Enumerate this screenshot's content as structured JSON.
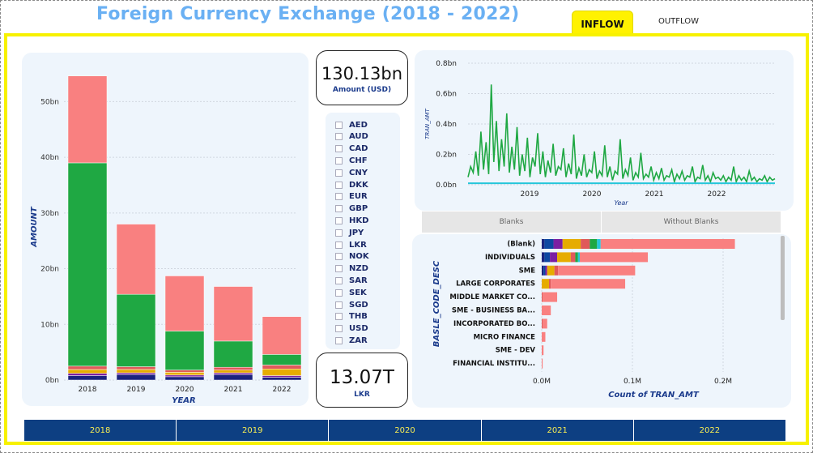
{
  "header": {
    "title": "Foreign Currency Exchange  (2018 - 2022)",
    "tabs": [
      {
        "label": "INFLOW",
        "active": true
      },
      {
        "label": "OUTFLOW",
        "active": false
      }
    ],
    "accent_color": "#fff200",
    "title_color": "#6ab0f3"
  },
  "kpis": {
    "amount_usd": {
      "value": "130.13bn",
      "label": "Amount (USD)"
    },
    "lkr": {
      "value": "13.07T",
      "label": "LKR"
    }
  },
  "currency_slicer": {
    "items": [
      "AED",
      "AUD",
      "CAD",
      "CHF",
      "CNY",
      "DKK",
      "EUR",
      "GBP",
      "HKD",
      "JPY",
      "LKR",
      "NOK",
      "NZD",
      "SAR",
      "SEK",
      "SGD",
      "THB",
      "USD",
      "ZAR"
    ]
  },
  "blanks_toggle": {
    "options": [
      "Blanks",
      "Without Blanks"
    ]
  },
  "year_buttons": [
    "2018",
    "2019",
    "2020",
    "2021",
    "2022"
  ],
  "chart_data": [
    {
      "type": "bar",
      "stacked": true,
      "categories": [
        "2018",
        "2019",
        "2020",
        "2021",
        "2022"
      ],
      "xlabel": "YEAR",
      "ylabel": "AMOUNT",
      "ylim": [
        0,
        55
      ],
      "yticks": [
        "0bn",
        "10bn",
        "20bn",
        "30bn",
        "40bn",
        "50bn"
      ],
      "series": [
        {
          "values": [
            0.8,
            1.0,
            0.6,
            1.0,
            0.5
          ],
          "color": "#1a237e"
        },
        {
          "values": [
            0.4,
            0.3,
            0.3,
            0.3,
            0.3
          ],
          "color": "#7b1fa2"
        },
        {
          "values": [
            0.7,
            0.6,
            0.5,
            0.5,
            1.2
          ],
          "color": "#e6ac00"
        },
        {
          "values": [
            0.6,
            0.5,
            0.4,
            0.5,
            0.7
          ],
          "color": "#e05a5a"
        },
        {
          "values": [
            36.5,
            13.0,
            7.0,
            4.7,
            1.9
          ],
          "color": "#1fa843"
        },
        {
          "values": [
            15.6,
            12.6,
            9.9,
            9.8,
            6.8
          ],
          "color": "#f98080"
        }
      ]
    },
    {
      "type": "line",
      "xlabel": "Year",
      "ylabel": "TRAN_AMT",
      "ylim": [
        0,
        0.8
      ],
      "yticks": [
        "0.0bn",
        "0.2bn",
        "0.4bn",
        "0.6bn",
        "0.8bn"
      ],
      "xticks": [
        "2019",
        "2020",
        "2021",
        "2022"
      ],
      "series": [
        {
          "color": "#1fa843",
          "values": [
            0.05,
            0.12,
            0.08,
            0.22,
            0.06,
            0.35,
            0.1,
            0.28,
            0.07,
            0.66,
            0.15,
            0.42,
            0.09,
            0.3,
            0.12,
            0.47,
            0.08,
            0.25,
            0.1,
            0.38,
            0.06,
            0.2,
            0.09,
            0.31,
            0.05,
            0.18,
            0.12,
            0.34,
            0.07,
            0.22,
            0.05,
            0.16,
            0.08,
            0.27,
            0.06,
            0.12,
            0.1,
            0.24,
            0.05,
            0.14,
            0.07,
            0.33,
            0.04,
            0.11,
            0.06,
            0.2,
            0.05,
            0.1,
            0.08,
            0.22,
            0.04,
            0.09,
            0.06,
            0.26,
            0.05,
            0.12,
            0.03,
            0.09,
            0.07,
            0.3,
            0.04,
            0.1,
            0.06,
            0.18,
            0.03,
            0.08,
            0.05,
            0.21,
            0.04,
            0.07,
            0.05,
            0.12,
            0.03,
            0.08,
            0.04,
            0.11,
            0.03,
            0.06,
            0.05,
            0.1,
            0.02,
            0.07,
            0.04,
            0.09,
            0.03,
            0.06,
            0.05,
            0.12,
            0.02,
            0.05,
            0.04,
            0.13,
            0.03,
            0.06,
            0.02,
            0.08,
            0.04,
            0.05,
            0.03,
            0.06,
            0.02,
            0.05,
            0.03,
            0.12,
            0.02,
            0.06,
            0.03,
            0.05,
            0.02,
            0.09,
            0.03,
            0.05,
            0.02,
            0.04,
            0.03,
            0.06,
            0.02,
            0.05,
            0.03,
            0.04
          ]
        },
        {
          "color": "#26c6da",
          "values": [
            0.01,
            0.01,
            0.01,
            0.01,
            0.01,
            0.01,
            0.01,
            0.01
          ]
        }
      ]
    },
    {
      "type": "bar",
      "orientation": "horizontal",
      "stacked": true,
      "xlabel": "Count of TRAN_AMT",
      "ylabel": "BASLE_CODE_DESC",
      "xlim": [
        0,
        0.25
      ],
      "xticks": [
        "0.0M",
        "0.1M",
        "0.2M"
      ],
      "categories": [
        "(Blank)",
        "INDIVIDUALS",
        "SME",
        "LARGE CORPORATES",
        "MIDDLE MARKET CO...",
        "SME - BUSINESS BA...",
        "INCORPORATED BO...",
        "MICRO FINANCE",
        "SME - DEV",
        "FINANCIAL INSTITU..."
      ],
      "series": [
        {
          "values": [
            0.003,
            0.003,
            0.002,
            0.0,
            0.0,
            0.0,
            0.0,
            0.0,
            0.0,
            0.0
          ],
          "color": "#1a237e"
        },
        {
          "values": [
            0.01,
            0.006,
            0.002,
            0.0,
            0.0,
            0.0,
            0.0,
            0.0,
            0.0,
            0.0
          ],
          "color": "#0d47a1"
        },
        {
          "values": [
            0.01,
            0.008,
            0.002,
            0.0,
            0.0,
            0.0,
            0.0,
            0.0,
            0.0,
            0.0
          ],
          "color": "#7b1fa2"
        },
        {
          "values": [
            0.02,
            0.015,
            0.008,
            0.008,
            0.0,
            0.0,
            0.0,
            0.0,
            0.0,
            0.0
          ],
          "color": "#e6ac00"
        },
        {
          "values": [
            0.01,
            0.005,
            0.004,
            0.002,
            0.001,
            0.0,
            0.001,
            0.0,
            0.0,
            0.0
          ],
          "color": "#e05a5a"
        },
        {
          "values": [
            0.008,
            0.003,
            0.0,
            0.0,
            0.0,
            0.0,
            0.0,
            0.0,
            0.0,
            0.0
          ],
          "color": "#1fa843"
        },
        {
          "values": [
            0.004,
            0.002,
            0.0,
            0.0,
            0.0,
            0.0,
            0.0,
            0.0,
            0.0,
            0.0
          ],
          "color": "#26c6da"
        },
        {
          "values": [
            0.148,
            0.075,
            0.085,
            0.082,
            0.016,
            0.01,
            0.005,
            0.004,
            0.002,
            0.001
          ],
          "color": "#f98080"
        }
      ]
    }
  ]
}
